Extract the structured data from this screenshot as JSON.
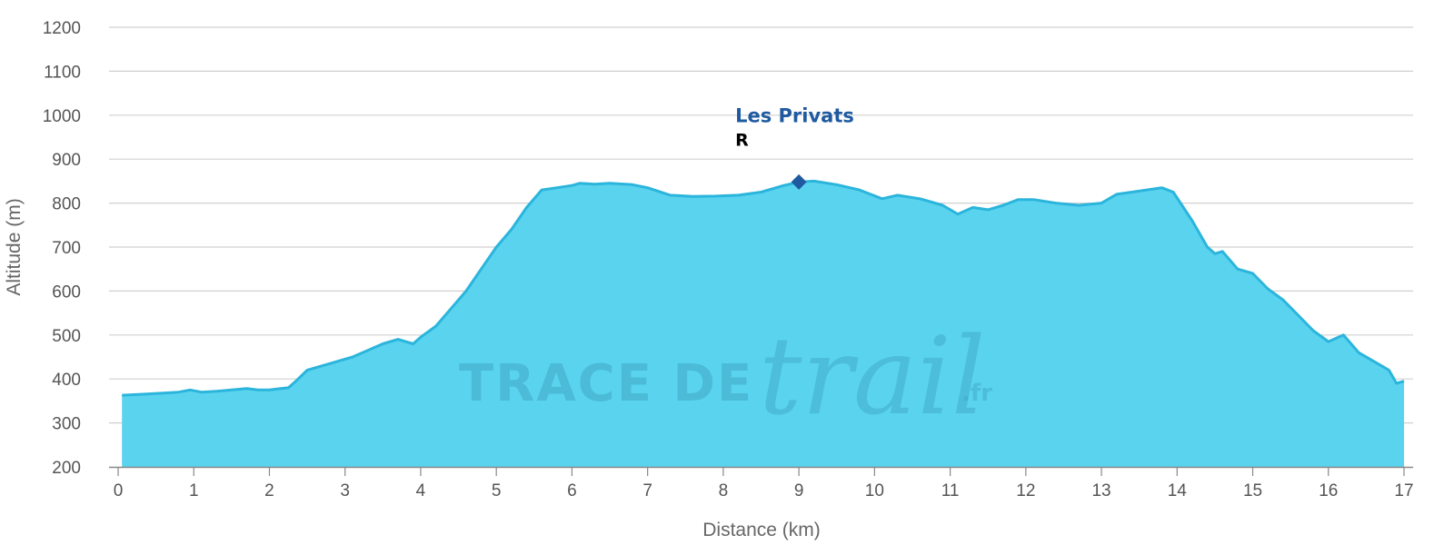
{
  "chart_data": {
    "type": "area",
    "xlabel": "Distance (km)",
    "ylabel": "Altitude (m)",
    "xlim": [
      0,
      17
    ],
    "ylim": [
      200,
      1200
    ],
    "xticks": [
      0,
      1,
      2,
      3,
      4,
      5,
      6,
      7,
      8,
      9,
      10,
      11,
      12,
      13,
      14,
      15,
      16,
      17
    ],
    "yticks": [
      200,
      300,
      400,
      500,
      600,
      700,
      800,
      900,
      1000,
      1100,
      1200
    ],
    "grid": "horizontal",
    "colors": {
      "fill": "#5ad3ef",
      "line": "#2bb5dc",
      "grid": "#d0d0d0",
      "marker": "#1f5aa0"
    },
    "series": [
      {
        "x": [
          0.05,
          0.3,
          0.6,
          0.8,
          0.95,
          1.1,
          1.3,
          1.5,
          1.7,
          1.85,
          2.0,
          2.15,
          2.25,
          2.35,
          2.5,
          2.7,
          2.9,
          3.1,
          3.3,
          3.5,
          3.7,
          3.9,
          4.0,
          4.2,
          4.4,
          4.6,
          4.8,
          5.0,
          5.2,
          5.4,
          5.6,
          5.8,
          6.0,
          6.1,
          6.3,
          6.5,
          6.8,
          7.0,
          7.3,
          7.6,
          7.9,
          8.2,
          8.5,
          8.8,
          9.0,
          9.2,
          9.5,
          9.8,
          10.1,
          10.3,
          10.6,
          10.9,
          11.1,
          11.3,
          11.5,
          11.7,
          11.9,
          12.1,
          12.4,
          12.7,
          13.0,
          13.2,
          13.4,
          13.6,
          13.8,
          13.95,
          14.2,
          14.4,
          14.5,
          14.6,
          14.8,
          15.0,
          15.2,
          15.4,
          15.6,
          15.8,
          16.0,
          16.2,
          16.4,
          16.6,
          16.8,
          16.9,
          17.0
        ],
        "y": [
          363,
          365,
          368,
          370,
          375,
          370,
          372,
          375,
          378,
          375,
          375,
          378,
          380,
          395,
          420,
          430,
          440,
          450,
          465,
          480,
          490,
          480,
          495,
          520,
          560,
          600,
          650,
          700,
          740,
          790,
          830,
          835,
          840,
          845,
          843,
          845,
          842,
          835,
          818,
          815,
          816,
          818,
          825,
          840,
          848,
          850,
          842,
          830,
          810,
          818,
          810,
          795,
          775,
          790,
          785,
          795,
          808,
          808,
          800,
          795,
          800,
          820,
          825,
          830,
          835,
          825,
          760,
          700,
          685,
          690,
          650,
          640,
          605,
          580,
          545,
          510,
          485,
          500,
          460,
          440,
          420,
          390,
          395
        ]
      }
    ],
    "annotation": {
      "name": "Les Privats",
      "code": "R",
      "x": 9.0,
      "y": 848
    },
    "watermark": {
      "line1": "TRACE DE",
      "line2": "trail",
      "line3": ".fr"
    }
  }
}
